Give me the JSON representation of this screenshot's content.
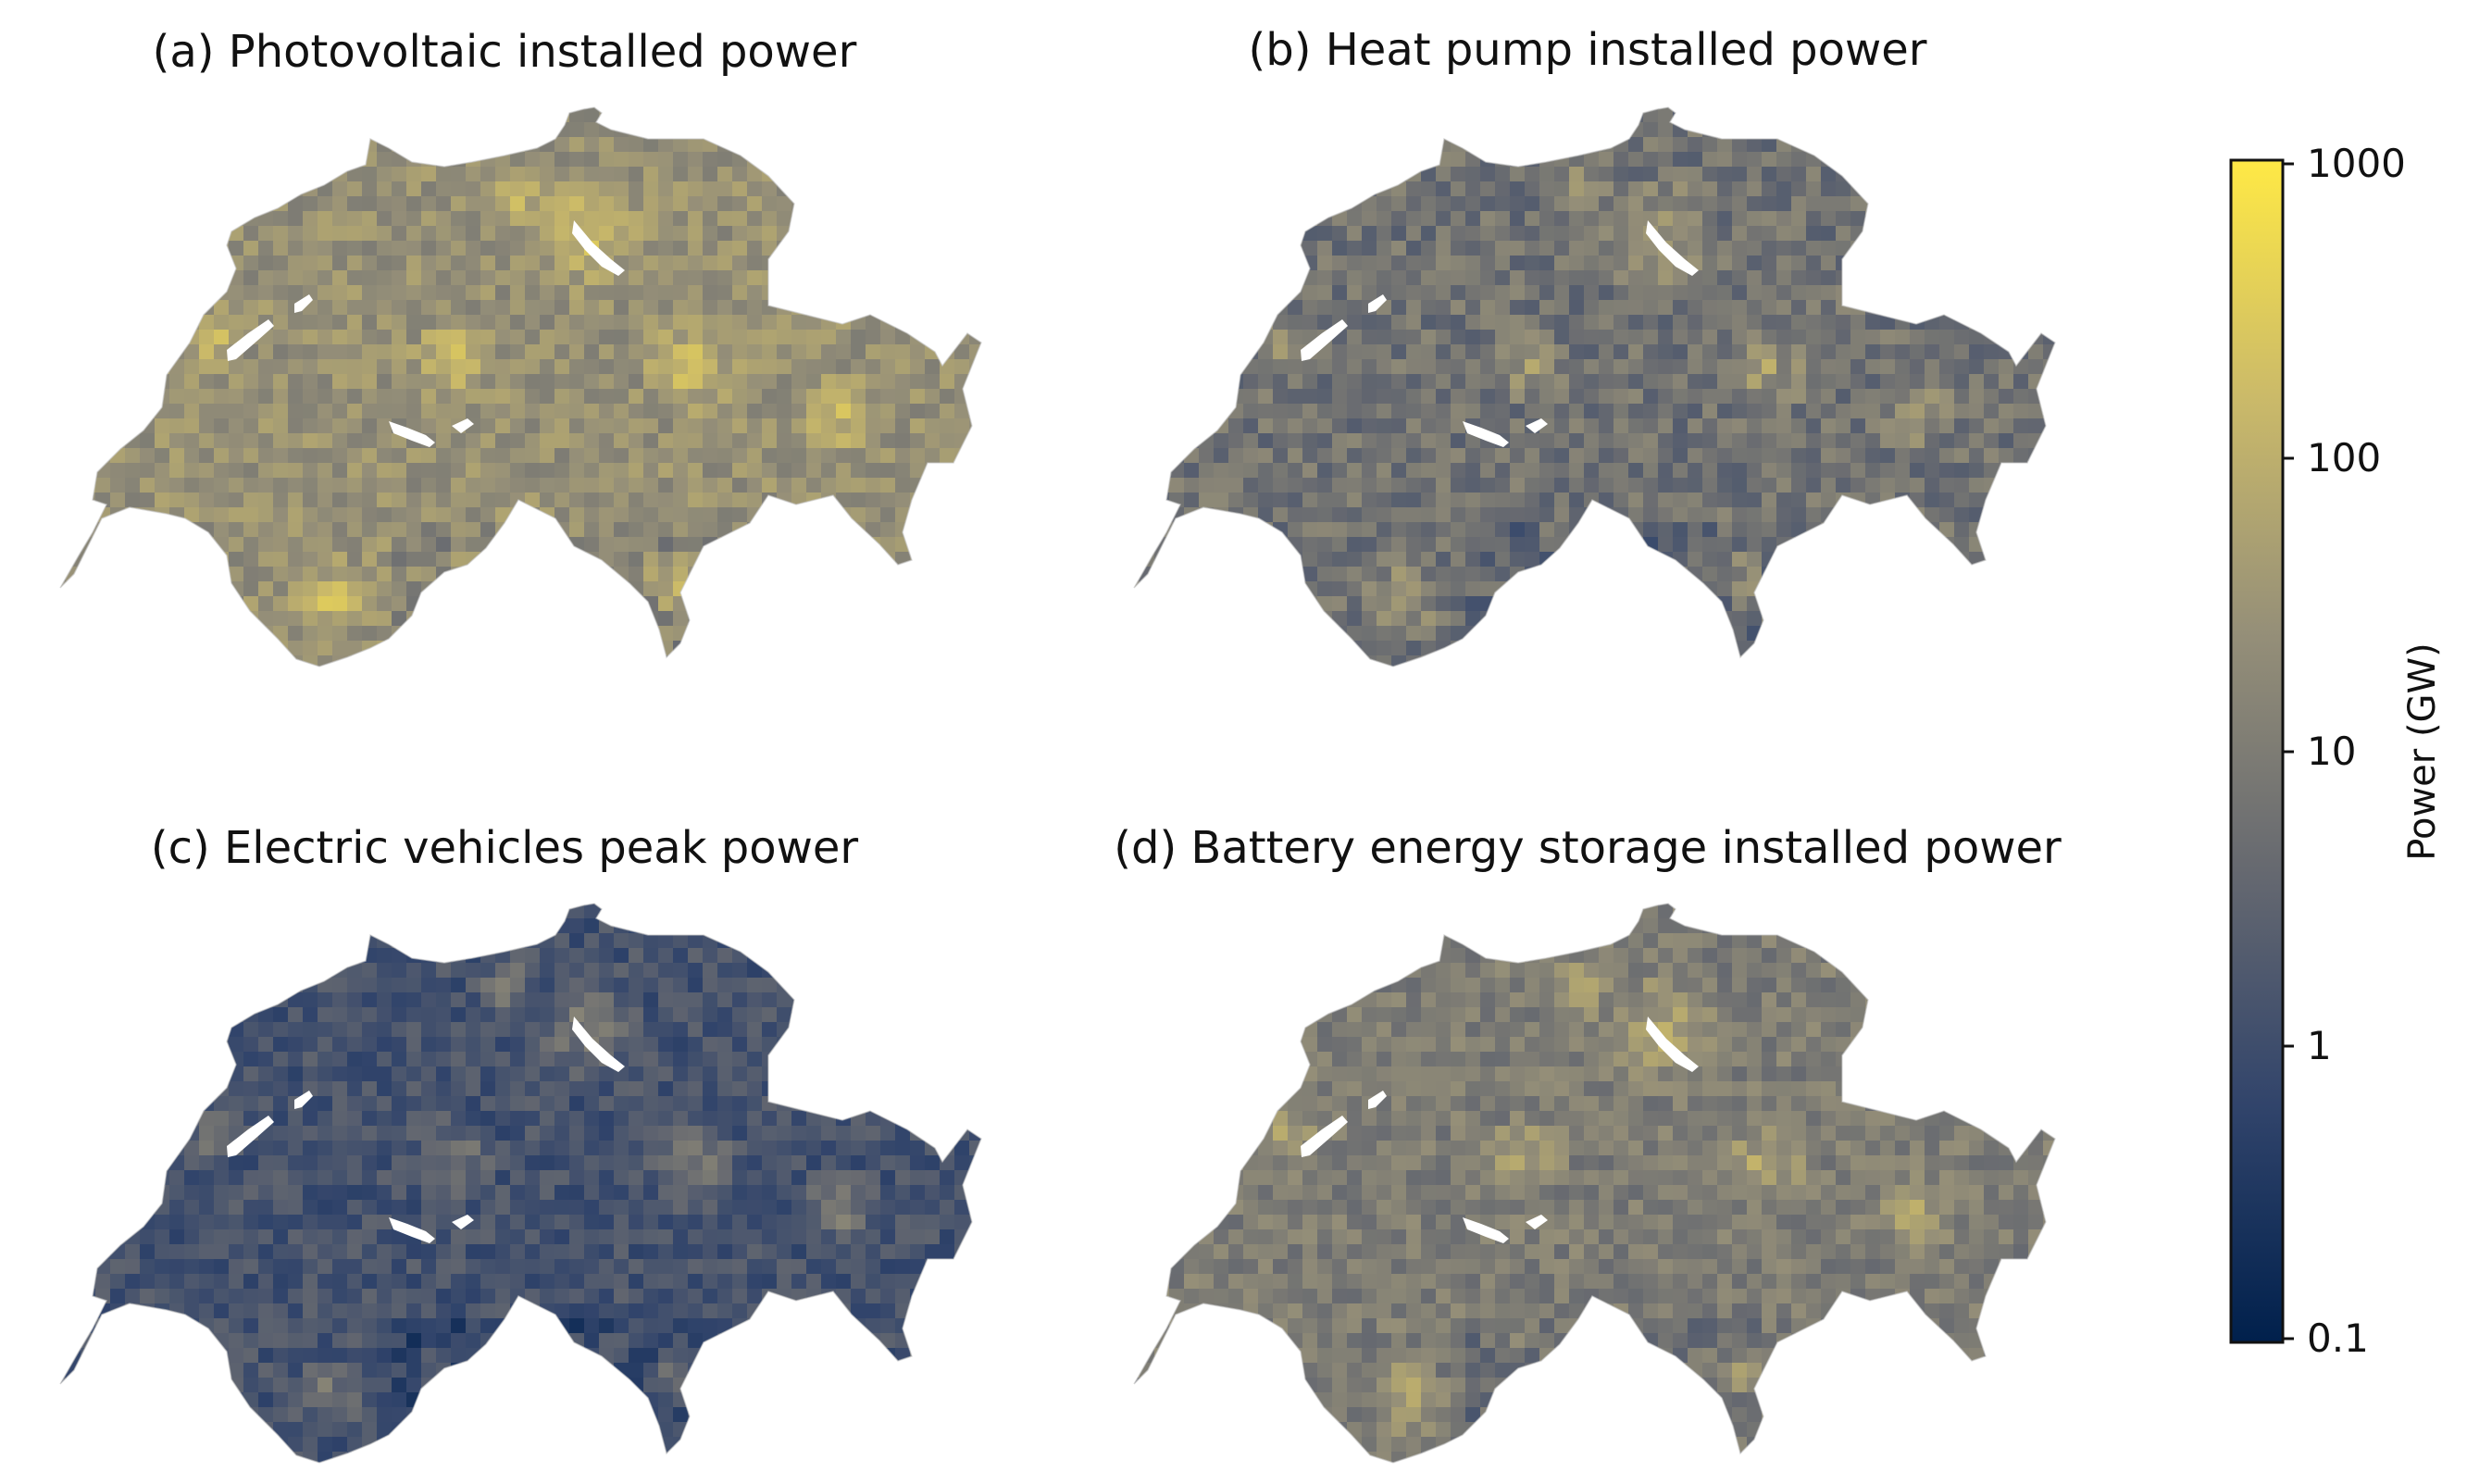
{
  "figure": {
    "panels": [
      {
        "id": "a",
        "title": "(a) Photovoltaic installed power",
        "base_level": 0.6,
        "variation": 0.1
      },
      {
        "id": "b",
        "title": "(b) Heat pump installed power",
        "base_level": 0.45,
        "variation": 0.12
      },
      {
        "id": "c",
        "title": "(c) Electric vehicles peak power",
        "base_level": 0.28,
        "variation": 0.1
      },
      {
        "id": "d",
        "title": "(d) Battery energy storage installed power",
        "base_level": 0.5,
        "variation": 0.1
      }
    ],
    "colorbar": {
      "label": "Power (GW)",
      "scale": "log",
      "ticks": [
        "1000",
        "100",
        "10",
        "1",
        "0.1"
      ],
      "colormap": "cividis",
      "colors": [
        "#00204c",
        "#31446b",
        "#666970",
        "#958f78",
        "#cbba69",
        "#ffe945"
      ]
    },
    "lake_color": "#ffffff"
  }
}
